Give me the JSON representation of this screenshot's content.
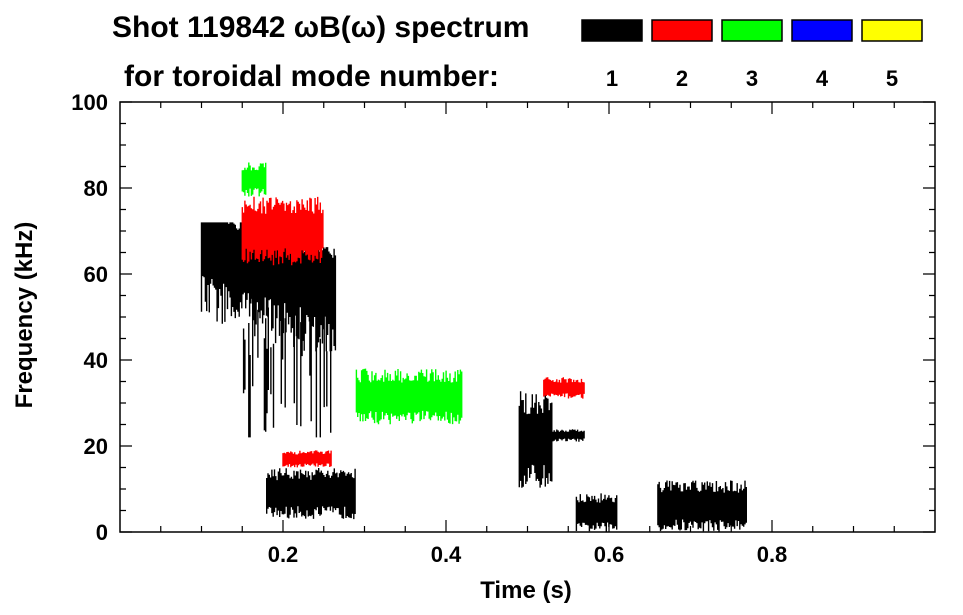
{
  "chart_data": {
    "type": "heatmap",
    "title_line1": "Shot 119842 ωB(ω) spectrum",
    "title_line2": "for toroidal mode number:",
    "xlabel": "Time (s)",
    "ylabel": "Frequency (kHz)",
    "xlim": [
      0.0,
      1.0
    ],
    "ylim": [
      0,
      100
    ],
    "x_ticks": [
      {
        "value": 0.2,
        "label": "0.2"
      },
      {
        "value": 0.4,
        "label": "0.4"
      },
      {
        "value": 0.6,
        "label": "0.6"
      },
      {
        "value": 0.8,
        "label": "0.8"
      }
    ],
    "y_ticks": [
      {
        "value": 0,
        "label": "0"
      },
      {
        "value": 20,
        "label": "20"
      },
      {
        "value": 40,
        "label": "40"
      },
      {
        "value": 60,
        "label": "60"
      },
      {
        "value": 80,
        "label": "80"
      },
      {
        "value": 100,
        "label": "100"
      }
    ],
    "legend": [
      {
        "mode": "1",
        "label": "1",
        "color": "#000000"
      },
      {
        "mode": "2",
        "label": "2",
        "color": "#ff0000"
      },
      {
        "mode": "3",
        "label": "3",
        "color": "#00ff00"
      },
      {
        "mode": "4",
        "label": "4",
        "color": "#0000ff"
      },
      {
        "mode": "5",
        "label": "5",
        "color": "#ffff00"
      }
    ],
    "features": [
      {
        "mode": "1",
        "t0": 0.1,
        "t1": 0.265,
        "f0": 42,
        "f1": 72,
        "note": "broad mode-1 activity, decreasing frequency"
      },
      {
        "mode": "1",
        "t0": 0.15,
        "t1": 0.26,
        "f0": 22,
        "f1": 56,
        "note": "vertical streaks"
      },
      {
        "mode": "1",
        "t0": 0.18,
        "t1": 0.29,
        "f0": 3,
        "f1": 15,
        "note": "low-frequency burst"
      },
      {
        "mode": "1",
        "t0": 0.49,
        "t1": 0.53,
        "f0": 10,
        "f1": 33
      },
      {
        "mode": "1",
        "t0": 0.52,
        "t1": 0.57,
        "f0": 21,
        "f1": 24
      },
      {
        "mode": "1",
        "t0": 0.56,
        "t1": 0.61,
        "f0": 0,
        "f1": 9
      },
      {
        "mode": "1",
        "t0": 0.66,
        "t1": 0.77,
        "f0": 0,
        "f1": 12
      },
      {
        "mode": "2",
        "t0": 0.15,
        "t1": 0.25,
        "f0": 62,
        "f1": 78
      },
      {
        "mode": "2",
        "t0": 0.2,
        "t1": 0.26,
        "f0": 15,
        "f1": 19
      },
      {
        "mode": "2",
        "t0": 0.52,
        "t1": 0.57,
        "f0": 31,
        "f1": 36
      },
      {
        "mode": "3",
        "t0": 0.15,
        "t1": 0.18,
        "f0": 78,
        "f1": 86
      },
      {
        "mode": "3",
        "t0": 0.29,
        "t1": 0.42,
        "f0": 25,
        "f1": 38
      }
    ]
  }
}
